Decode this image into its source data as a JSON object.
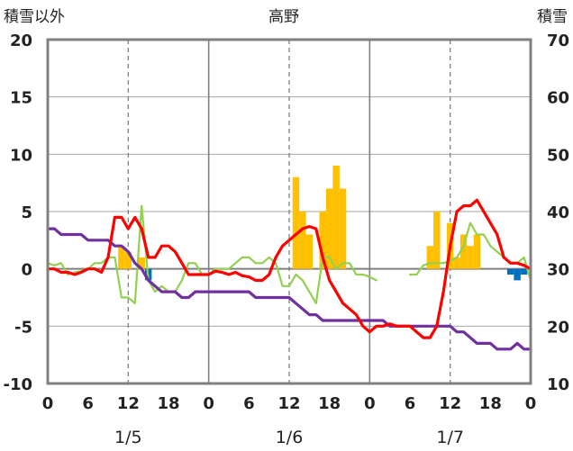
{
  "chart_data": {
    "type": "bar+line",
    "title": "高野",
    "left_axis_label": "積雪以外",
    "right_axis_label": "積雪",
    "left_ylim": [
      -10,
      20
    ],
    "right_ylim": [
      10,
      70
    ],
    "left_ticks": [
      "-10",
      "-5",
      "0",
      "5",
      "10",
      "15",
      "20"
    ],
    "right_ticks": [
      "10",
      "20",
      "30",
      "40",
      "50",
      "60",
      "70"
    ],
    "x_range": [
      0,
      72
    ],
    "x_ticks": [
      {
        "x": 0,
        "label": "0"
      },
      {
        "x": 6,
        "label": "6"
      },
      {
        "x": 12,
        "label": "12"
      },
      {
        "x": 18,
        "label": "18"
      },
      {
        "x": 24,
        "label": "0"
      },
      {
        "x": 30,
        "label": "6"
      },
      {
        "x": 36,
        "label": "12"
      },
      {
        "x": 42,
        "label": "18"
      },
      {
        "x": 48,
        "label": "0"
      },
      {
        "x": 54,
        "label": "6"
      },
      {
        "x": 60,
        "label": "12"
      },
      {
        "x": 66,
        "label": "18"
      },
      {
        "x": 72,
        "label": "0"
      }
    ],
    "day_labels": [
      {
        "x": 12,
        "label": "1/5"
      },
      {
        "x": 36,
        "label": "1/6"
      },
      {
        "x": 60,
        "label": "1/7"
      }
    ],
    "grid": {
      "vertical_dashed_hours": [
        12,
        36,
        60
      ],
      "vertical_solid_hours": [
        24,
        48
      ]
    },
    "colors": {
      "precip_bar": "#ffc000",
      "sunshine_bar": "#0070c0",
      "temperature": "#ff0000",
      "wind": "#92d050",
      "snow_depth": "#7030a0",
      "axis": "#808080"
    },
    "series": [
      {
        "kind": "bar",
        "color": "#ffc000",
        "axis": "left",
        "x": [
          11,
          12,
          14,
          37,
          38,
          39,
          41,
          42,
          43,
          44,
          57,
          58,
          60,
          61,
          62,
          63,
          64
        ],
        "values": [
          2,
          1.5,
          1,
          8,
          5,
          3,
          5,
          7,
          9,
          7,
          2,
          5,
          4,
          1,
          3,
          2,
          3
        ]
      },
      {
        "kind": "bar",
        "color": "#0070c0",
        "axis": "left",
        "x": [
          15,
          69,
          70,
          71
        ],
        "values": [
          -1,
          -0.5,
          -1,
          -0.5
        ]
      },
      {
        "kind": "line",
        "color": "#ff0000",
        "axis": "left",
        "x": [
          0,
          1,
          2,
          3,
          4,
          5,
          6,
          7,
          8,
          9,
          10,
          11,
          12,
          13,
          14,
          15,
          16,
          17,
          18,
          19,
          20,
          21,
          22,
          23,
          24,
          25,
          26,
          27,
          28,
          29,
          30,
          31,
          32,
          33,
          34,
          35,
          36,
          37,
          38,
          39,
          40,
          41,
          42,
          43,
          44,
          45,
          46,
          47,
          48,
          49,
          50,
          51,
          52,
          53,
          54,
          55,
          56,
          57,
          58,
          59,
          60,
          61,
          62,
          63,
          64,
          65,
          66,
          67,
          68,
          69,
          70,
          71,
          72
        ],
        "values": [
          0,
          0,
          -0.3,
          -0.3,
          -0.5,
          -0.3,
          0,
          0,
          -0.3,
          1,
          4.5,
          4.5,
          3.5,
          4.5,
          3.5,
          1,
          1,
          2,
          2,
          1.5,
          0.5,
          -0.5,
          -0.5,
          -0.5,
          -0.5,
          -0.2,
          -0.3,
          -0.5,
          -0.3,
          -0.6,
          -0.7,
          -1,
          -1,
          -0.5,
          1,
          2,
          2.5,
          3,
          3.5,
          3.7,
          3.5,
          1,
          -1,
          -2,
          -3,
          -3.5,
          -4,
          -5,
          -5.5,
          -5,
          -5,
          -4.8,
          -5,
          -5,
          -5,
          -5.5,
          -6,
          -6,
          -5,
          -2,
          2,
          5,
          5.5,
          5.5,
          6,
          5,
          4,
          3,
          1,
          0.5,
          0.5,
          0.3,
          0
        ]
      },
      {
        "kind": "line",
        "color": "#92d050",
        "axis": "left",
        "segments": [
          {
            "x": [
              0,
              1,
              2,
              3,
              4,
              5,
              6,
              7,
              8,
              9,
              10,
              11,
              12,
              13,
              14,
              15,
              16,
              17,
              18,
              19,
              20,
              21,
              22,
              23,
              24,
              25,
              26,
              27,
              28,
              29,
              30,
              31,
              32,
              33,
              34,
              35,
              36,
              37,
              38,
              39,
              40,
              41,
              42,
              43,
              44,
              45,
              46,
              47,
              48,
              49
            ],
            "values": [
              0.5,
              0.3,
              0.5,
              -0.5,
              -0.3,
              -0.2,
              0,
              0.5,
              0.5,
              1,
              1,
              -2.5,
              -2.5,
              -3,
              5.5,
              -1,
              -2,
              -1.5,
              -2,
              -2,
              -1,
              0.5,
              0.5,
              -0.5,
              -0.5,
              0,
              0,
              0,
              0.5,
              1,
              1,
              0.5,
              0.5,
              1,
              0.5,
              -1.5,
              -1.5,
              -0.5,
              -1,
              -2,
              -3,
              1,
              1,
              0,
              0.5,
              0.5,
              -0.5,
              -0.5,
              -0.7,
              -1
            ]
          },
          {
            "x": [
              54,
              55,
              56,
              57,
              58,
              59,
              60,
              61,
              62,
              63,
              64,
              65,
              66,
              67,
              68,
              69,
              70,
              71,
              72
            ],
            "values": [
              -0.5,
              -0.5,
              0.3,
              0.5,
              0.5,
              0.5,
              0.7,
              1,
              2,
              4,
              3,
              3,
              2,
              1.5,
              1,
              0.5,
              0.5,
              1,
              -1
            ]
          }
        ]
      },
      {
        "kind": "line",
        "color": "#7030a0",
        "axis": "right",
        "x": [
          0,
          1,
          2,
          3,
          4,
          5,
          6,
          7,
          8,
          9,
          10,
          11,
          12,
          13,
          14,
          15,
          16,
          17,
          18,
          19,
          20,
          21,
          22,
          23,
          24,
          25,
          26,
          27,
          28,
          29,
          30,
          31,
          32,
          33,
          34,
          35,
          36,
          37,
          38,
          39,
          40,
          41,
          42,
          43,
          44,
          45,
          46,
          47,
          48,
          49,
          50,
          51,
          52,
          53,
          54,
          55,
          56,
          57,
          58,
          59,
          60,
          61,
          62,
          63,
          64,
          65,
          66,
          67,
          68,
          69,
          70,
          71,
          72
        ],
        "values": [
          37,
          37,
          36,
          36,
          36,
          36,
          35,
          35,
          35,
          35,
          34,
          34,
          33,
          31,
          30,
          28,
          27,
          26,
          26,
          26,
          25,
          25,
          26,
          26,
          26,
          26,
          26,
          26,
          26,
          26,
          26,
          25,
          25,
          25,
          25,
          25,
          25,
          24,
          23,
          22,
          22,
          21,
          21,
          21,
          21,
          21,
          21,
          21,
          21,
          21,
          21,
          20,
          20,
          20,
          20,
          20,
          20,
          20,
          20,
          20,
          20,
          19,
          19,
          18,
          17,
          17,
          17,
          16,
          16,
          16,
          17,
          16,
          16
        ]
      }
    ]
  }
}
